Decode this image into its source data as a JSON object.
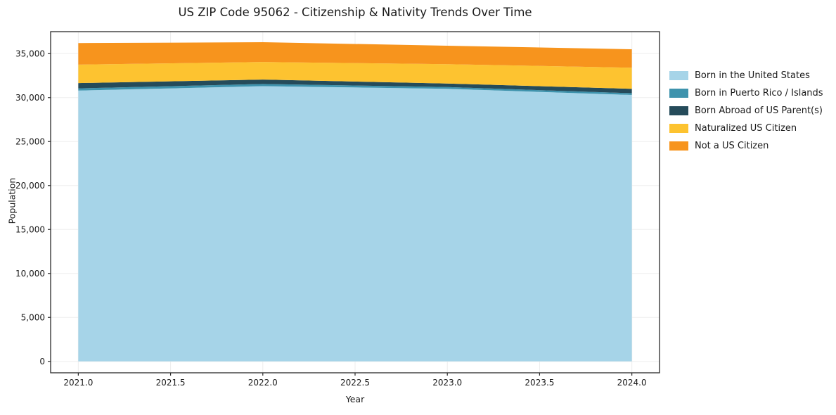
{
  "chart_data": {
    "type": "area",
    "title": "US ZIP Code 95062 - Citizenship & Nativity Trends Over Time",
    "xlabel": "Year",
    "ylabel": "Population",
    "stacked": true,
    "x": [
      2021,
      2022,
      2023,
      2024
    ],
    "series": [
      {
        "name": "Born in the United States",
        "color": "#a6d4e8",
        "values": [
          30800,
          31300,
          31000,
          30300
        ]
      },
      {
        "name": "Born in Puerto Rico / Islands",
        "color": "#3e93ad",
        "values": [
          250,
          250,
          200,
          200
        ]
      },
      {
        "name": "Born Abroad of US Parent(s)",
        "color": "#254b5a",
        "values": [
          600,
          500,
          400,
          500
        ]
      },
      {
        "name": "Naturalized US Citizen",
        "color": "#fdc330",
        "values": [
          2100,
          2000,
          2200,
          2400
        ]
      },
      {
        "name": "Not a US Citizen",
        "color": "#f7941d",
        "values": [
          2450,
          2250,
          2100,
          2100
        ]
      }
    ],
    "xlim": [
      2020.85,
      2024.15
    ],
    "ylim": [
      -1300,
      37500
    ],
    "xticks": [
      2021.0,
      2021.5,
      2022.0,
      2022.5,
      2023.0,
      2023.5,
      2024.0
    ],
    "yticks": [
      0,
      5000,
      10000,
      15000,
      20000,
      25000,
      30000,
      35000
    ],
    "grid": true,
    "legend_position": "right"
  }
}
